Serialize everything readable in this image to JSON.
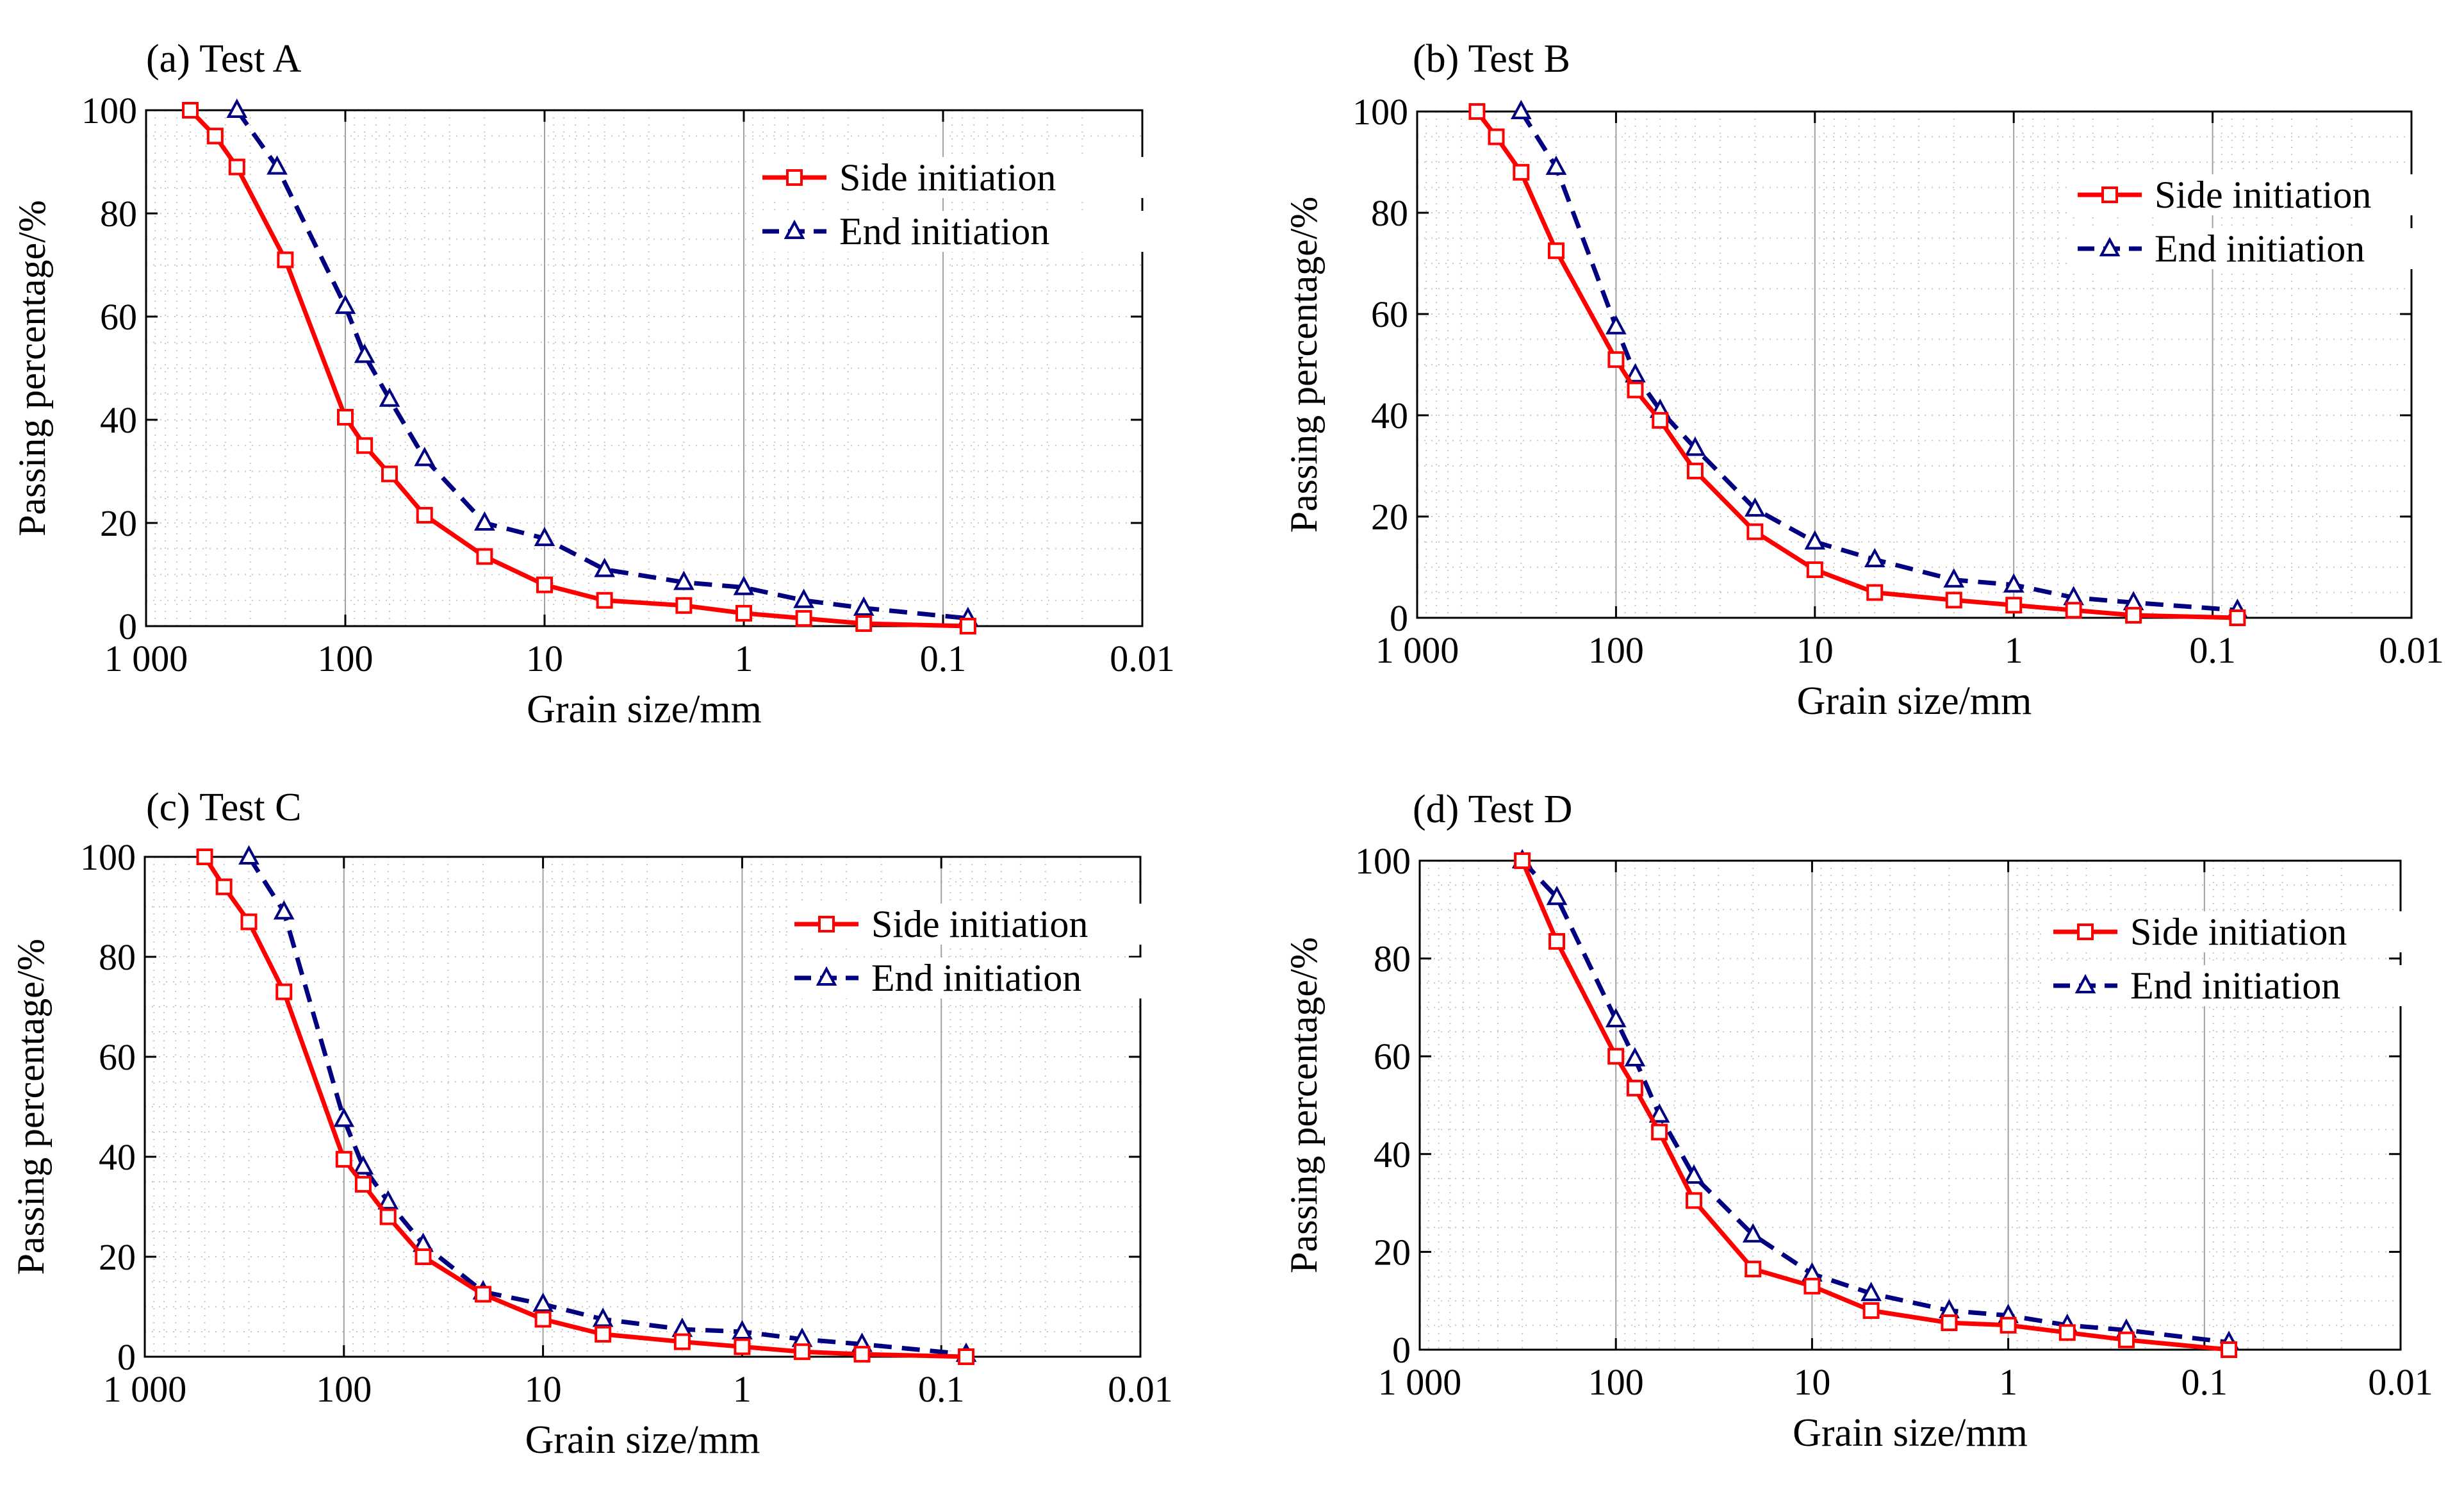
{
  "chart_data": [
    {
      "type": "line",
      "title": "(a) Test A",
      "xlabel": "Grain size/mm",
      "ylabel": "Passing percentage/%",
      "x_scale": "log",
      "x_reversed": true,
      "xlim": [
        1000,
        0.01
      ],
      "ylim": [
        0,
        100
      ],
      "xticks": [
        1000,
        100,
        10,
        1,
        0.1,
        0.01
      ],
      "xtick_labels": [
        "1 000",
        "100",
        "10",
        "1",
        "0.1",
        "0.01"
      ],
      "yticks": [
        0,
        20,
        40,
        60,
        80,
        100
      ],
      "ytick_labels": [
        "0",
        "20",
        "40",
        "60",
        "80",
        "100"
      ],
      "grid": "dotted minor",
      "legend": "top-right",
      "series": [
        {
          "name": "Side initiation",
          "color": "#ff0000",
          "marker": "square",
          "dash": "solid",
          "x": [
            600,
            450,
            350,
            200,
            100,
            80,
            60,
            40,
            20,
            10,
            5,
            2,
            1,
            0.5,
            0.25,
            0.075
          ],
          "y": [
            100,
            95,
            89,
            71,
            40.5,
            35,
            29.5,
            21.5,
            13.5,
            8,
            5,
            4,
            2.5,
            1.5,
            0.5,
            0
          ]
        },
        {
          "name": "End initiation",
          "color": "#000080",
          "marker": "triangle",
          "dash": "dashed",
          "x": [
            350,
            220,
            100,
            80,
            60,
            40,
            20,
            10,
            5,
            2,
            1,
            0.5,
            0.25,
            0.075
          ],
          "y": [
            100,
            89,
            62,
            52.5,
            44,
            32.5,
            20,
            17,
            11,
            8.5,
            7.5,
            5,
            3.5,
            1.5
          ]
        }
      ]
    },
    {
      "type": "line",
      "title": "(b) Test B",
      "xlabel": "Grain size/mm",
      "ylabel": "Passing percentage/%",
      "x_scale": "log",
      "x_reversed": true,
      "xlim": [
        1000,
        0.01
      ],
      "ylim": [
        0,
        100
      ],
      "xticks": [
        1000,
        100,
        10,
        1,
        0.1,
        0.01
      ],
      "xtick_labels": [
        "1 000",
        "100",
        "10",
        "1",
        "0.1",
        "0.01"
      ],
      "yticks": [
        0,
        20,
        40,
        60,
        80,
        100
      ],
      "ytick_labels": [
        "0",
        "20",
        "40",
        "60",
        "80",
        "100"
      ],
      "grid": "dotted minor",
      "legend": "top-right",
      "series": [
        {
          "name": "Side initiation",
          "color": "#ff0000",
          "marker": "square",
          "dash": "solid",
          "x": [
            500,
            400,
            300,
            200,
            100,
            80,
            60,
            40,
            20,
            10,
            5,
            2,
            1,
            0.5,
            0.25,
            0.075
          ],
          "y": [
            100,
            95,
            88,
            72.5,
            51,
            45,
            39,
            29,
            17,
            9.5,
            5,
            3.5,
            2.5,
            1.5,
            0.5,
            0
          ]
        },
        {
          "name": "End initiation",
          "color": "#000080",
          "marker": "triangle",
          "dash": "dashed",
          "x": [
            300,
            200,
            100,
            80,
            60,
            40,
            20,
            10,
            5,
            2,
            1,
            0.5,
            0.25,
            0.075
          ],
          "y": [
            100,
            89,
            57.5,
            48,
            41,
            33.5,
            21.5,
            15,
            11.5,
            7.5,
            6.5,
            4,
            3,
            1.5
          ]
        }
      ]
    },
    {
      "type": "line",
      "title": "(c) Test C",
      "xlabel": "Grain size/mm",
      "ylabel": "Passing percentage/%",
      "x_scale": "log",
      "x_reversed": true,
      "xlim": [
        1000,
        0.01
      ],
      "ylim": [
        0,
        100
      ],
      "xticks": [
        1000,
        100,
        10,
        1,
        0.1,
        0.01
      ],
      "xtick_labels": [
        "1 000",
        "100",
        "10",
        "1",
        "0.1",
        "0.01"
      ],
      "yticks": [
        0,
        20,
        40,
        60,
        80,
        100
      ],
      "ytick_labels": [
        "0",
        "20",
        "40",
        "60",
        "80",
        "100"
      ],
      "grid": "dotted minor",
      "legend": "top-right",
      "series": [
        {
          "name": "Side initiation",
          "color": "#ff0000",
          "marker": "square",
          "dash": "solid",
          "x": [
            500,
            400,
            300,
            200,
            100,
            80,
            60,
            40,
            20,
            10,
            5,
            2,
            1,
            0.5,
            0.25,
            0.075
          ],
          "y": [
            100,
            94,
            87,
            73,
            39.5,
            34.5,
            28,
            20,
            12.5,
            7.5,
            4.5,
            3,
            2,
            1,
            0.5,
            0
          ]
        },
        {
          "name": "End initiation",
          "color": "#000080",
          "marker": "triangle",
          "dash": "dashed",
          "x": [
            300,
            200,
            100,
            80,
            60,
            40,
            20,
            10,
            5,
            2,
            1,
            0.5,
            0.25,
            0.075
          ],
          "y": [
            100,
            89,
            47.5,
            38,
            31,
            22.5,
            13,
            10.5,
            7.5,
            5.5,
            5,
            3.5,
            2.5,
            0.5
          ]
        }
      ]
    },
    {
      "type": "line",
      "title": "(d) Test D",
      "xlabel": "Grain size/mm",
      "ylabel": "Passing percentage/%",
      "x_scale": "log",
      "x_reversed": true,
      "xlim": [
        1000,
        0.01
      ],
      "ylim": [
        0,
        100
      ],
      "xticks": [
        1000,
        100,
        10,
        1,
        0.1,
        0.01
      ],
      "xtick_labels": [
        "1 000",
        "100",
        "10",
        "1",
        "0.1",
        "0.01"
      ],
      "yticks": [
        0,
        20,
        40,
        60,
        80,
        100
      ],
      "ytick_labels": [
        "0",
        "20",
        "40",
        "60",
        "80",
        "100"
      ],
      "grid": "dotted minor",
      "legend": "top-right",
      "series": [
        {
          "name": "Side initiation",
          "color": "#ff0000",
          "marker": "square",
          "dash": "solid",
          "x": [
            300,
            200,
            100,
            80,
            60,
            40,
            20,
            10,
            5,
            2,
            1,
            0.5,
            0.25,
            0.075
          ],
          "y": [
            100,
            83.5,
            60,
            53.5,
            44.5,
            30.5,
            16.5,
            13,
            8,
            5.5,
            5,
            3.5,
            2,
            0
          ]
        },
        {
          "name": "End initiation",
          "color": "#000080",
          "marker": "triangle",
          "dash": "dashed",
          "x": [
            300,
            200,
            100,
            80,
            60,
            40,
            20,
            10,
            5,
            2,
            1,
            0.5,
            0.25,
            0.075
          ],
          "y": [
            100,
            92.5,
            67.5,
            59.5,
            48,
            35.5,
            23.5,
            15.5,
            11.5,
            8,
            7,
            5,
            4,
            1.5
          ]
        }
      ]
    }
  ]
}
